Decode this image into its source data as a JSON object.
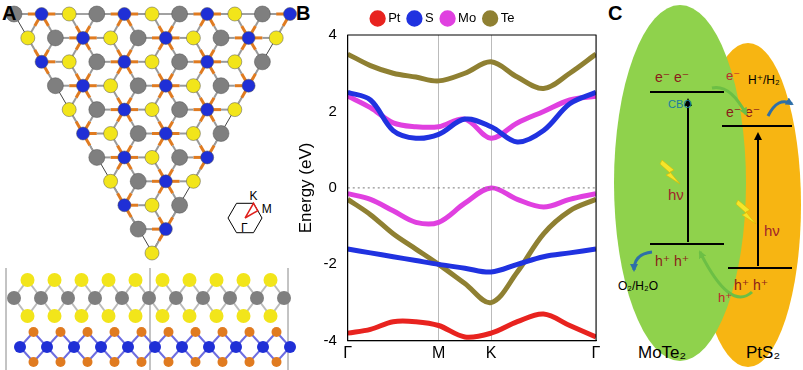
{
  "panel_labels": [
    "A",
    "B",
    "C"
  ],
  "structure": {
    "bz_labels": [
      "K",
      "M",
      "Γ"
    ]
  },
  "chart_data": {
    "type": "line",
    "y_label": "Energy (eV)",
    "x": [
      0,
      0.25,
      0.5,
      0.75,
      1,
      1.289,
      1.577,
      1.866,
      2.155,
      2.443,
      2.732
    ],
    "xlim": [
      0,
      2.732
    ],
    "xticks": [
      {
        "value": 0,
        "label": "Γ"
      },
      {
        "value": 1,
        "label": "M"
      },
      {
        "value": 1.577,
        "label": "K"
      },
      {
        "value": 2.732,
        "label": "Γ"
      }
    ],
    "ylim": [
      -4,
      4
    ],
    "yticks": [
      -4,
      -2,
      0,
      2,
      4
    ],
    "fermi_level": 0,
    "grid": "x",
    "legend": "top",
    "series": [
      {
        "name": "Pt",
        "color": "#e8231f",
        "bands": [
          [
            -3.8,
            -3.7,
            -3.5,
            -3.5,
            -3.6,
            -3.9,
            -3.8,
            -3.5,
            -3.3,
            -3.6,
            -3.9
          ]
        ]
      },
      {
        "name": "S",
        "color": "#2032e0",
        "bands": [
          [
            2.5,
            2.3,
            1.5,
            1.3,
            1.4,
            1.8,
            1.6,
            1.2,
            1.5,
            2.2,
            2.5
          ],
          [
            -1.6,
            -1.7,
            -1.8,
            -1.9,
            -2.0,
            -2.1,
            -2.2,
            -2.0,
            -1.8,
            -1.7,
            -1.6
          ]
        ]
      },
      {
        "name": "Mo",
        "color": "#e040e0",
        "bands": [
          [
            2.4,
            2.1,
            1.7,
            1.6,
            1.6,
            1.8,
            1.3,
            1.7,
            2.0,
            2.3,
            2.4
          ],
          [
            -0.15,
            -0.3,
            -0.6,
            -0.9,
            -0.9,
            -0.4,
            0,
            -0.3,
            -0.5,
            -0.3,
            -0.15
          ]
        ]
      },
      {
        "name": "Te",
        "color": "#8f8032",
        "bands": [
          [
            3.5,
            3.2,
            3.0,
            2.9,
            2.8,
            3.0,
            3.3,
            2.9,
            2.6,
            3.0,
            3.5
          ],
          [
            -0.3,
            -0.7,
            -1.2,
            -1.6,
            -2.0,
            -2.5,
            -3.0,
            -2.2,
            -1.2,
            -0.6,
            -0.3
          ]
        ]
      }
    ]
  },
  "scheme": {
    "materials": [
      "MoTe₂",
      "PtS₂"
    ],
    "electrons": "e⁻ e⁻",
    "holes": "h⁺ h⁺",
    "photon": "hν",
    "cbo": "CBO",
    "electron_transfer": "e⁻",
    "hole_transfer": "h⁺",
    "reduction": "H⁺/H₂",
    "oxidation": "O₂/H₂O"
  }
}
